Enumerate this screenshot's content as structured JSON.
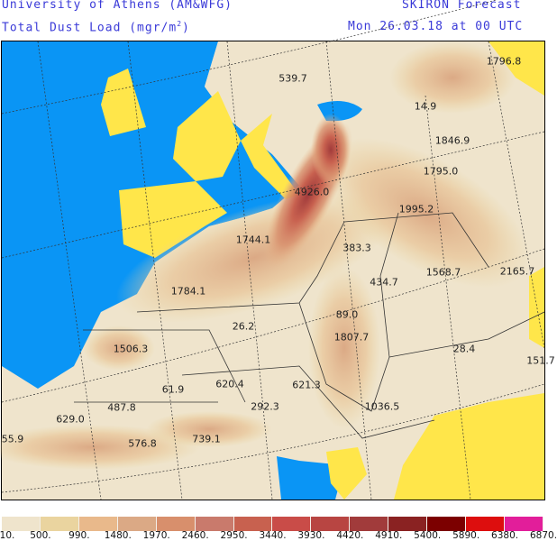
{
  "header": {
    "institution": "University of Athens (AM&WFG)",
    "product": "SKIRON Forecast",
    "variable": "Total Dust Load (mgr/m",
    "variable_sup": "2",
    "variable_end": ")",
    "valid_time": "Mon 26.03.18 at 00 UTC"
  },
  "colors": {
    "ocean": "#0a95f5",
    "no_data_land": "#ffe64a",
    "text": "#3a3ad8"
  },
  "map_labels": [
    "539.7",
    "1796.8",
    "14.9",
    "1846.9",
    "1795.0",
    "4926.0",
    "1995.2",
    "1744.1",
    "383.3",
    "1784.1",
    "1568.7",
    "434.7",
    "2165.7",
    "89.0",
    "26.2",
    "1807.7",
    "1506.3",
    "28.4",
    "151.7",
    "61.9",
    "620.4",
    "621.3",
    "487.8",
    "292.3",
    "1036.5",
    "629.0",
    "55.9",
    "576.8",
    "739.1"
  ],
  "legend": {
    "colors": [
      "#efe4cc",
      "#ead49f",
      "#e9b98b",
      "#dba985",
      "#d88f6c",
      "#c97a6c",
      "#c8614f",
      "#c94c48",
      "#b84542",
      "#a13b3b",
      "#8a2222",
      "#7c0000",
      "#dd0e0e",
      "#e21e9a"
    ],
    "ticks": [
      "10.",
      "500.",
      "990.",
      "1480.",
      "1970.",
      "2460.",
      "2950.",
      "3440.",
      "3930.",
      "4420.",
      "4910.",
      "5400.",
      "5890.",
      "6380.",
      "6870."
    ]
  }
}
